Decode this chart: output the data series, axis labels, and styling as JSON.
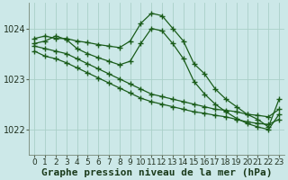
{
  "background_color": "#cce8e8",
  "grid_color_major": "#aad0c8",
  "grid_color_minor": "#bbddd8",
  "line_color": "#1a5c1a",
  "xlabel": "Graphe pression niveau de la mer (hPa)",
  "xlabel_fontsize": 8,
  "tick_fontsize": 7,
  "ylabel_ticks": [
    1022,
    1023,
    1024
  ],
  "xlim": [
    -0.5,
    23.5
  ],
  "ylim": [
    1021.5,
    1024.5
  ],
  "series": [
    {
      "x": [
        0,
        1,
        2,
        3,
        4,
        5,
        6,
        7,
        8,
        9,
        10,
        11,
        12,
        13,
        14,
        15,
        16,
        17,
        18,
        19,
        20,
        21,
        22,
        23
      ],
      "y": [
        1023.8,
        1023.85,
        1023.8,
        1023.8,
        1023.75,
        1023.72,
        1023.68,
        1023.65,
        1023.62,
        1023.75,
        1024.1,
        1024.3,
        1024.25,
        1024.0,
        1023.75,
        1023.3,
        1023.1,
        1022.8,
        1022.6,
        1022.45,
        1022.3,
        1022.2,
        1022.05,
        1022.6
      ]
    },
    {
      "x": [
        0,
        1,
        2,
        3,
        4,
        5,
        6,
        7,
        8,
        9,
        10,
        11,
        12,
        13,
        14,
        15,
        16,
        17,
        18,
        19,
        20,
        21,
        22,
        23
      ],
      "y": [
        1023.7,
        1023.75,
        1023.85,
        1023.78,
        1023.6,
        1023.5,
        1023.42,
        1023.35,
        1023.28,
        1023.35,
        1023.7,
        1024.0,
        1023.95,
        1023.7,
        1023.4,
        1022.95,
        1022.7,
        1022.5,
        1022.35,
        1022.22,
        1022.12,
        1022.05,
        1022.0,
        1022.3
      ]
    },
    {
      "x": [
        0,
        1,
        2,
        3,
        4,
        5,
        6,
        7,
        8,
        9,
        10,
        11,
        12,
        13,
        14,
        15,
        16,
        17,
        18,
        19,
        20,
        21,
        22,
        23
      ],
      "y": [
        1023.65,
        1023.6,
        1023.55,
        1023.5,
        1023.4,
        1023.3,
        1023.2,
        1023.1,
        1023.0,
        1022.9,
        1022.8,
        1022.7,
        1022.65,
        1022.6,
        1022.55,
        1022.5,
        1022.45,
        1022.4,
        1022.38,
        1022.35,
        1022.3,
        1022.28,
        1022.25,
        1022.4
      ]
    },
    {
      "x": [
        0,
        1,
        2,
        3,
        4,
        5,
        6,
        7,
        8,
        9,
        10,
        11,
        12,
        13,
        14,
        15,
        16,
        17,
        18,
        19,
        20,
        21,
        22,
        23
      ],
      "y": [
        1023.55,
        1023.45,
        1023.4,
        1023.32,
        1023.22,
        1023.12,
        1023.02,
        1022.92,
        1022.82,
        1022.72,
        1022.62,
        1022.55,
        1022.5,
        1022.45,
        1022.4,
        1022.35,
        1022.32,
        1022.28,
        1022.25,
        1022.2,
        1022.15,
        1022.12,
        1022.1,
        1022.2
      ]
    }
  ]
}
